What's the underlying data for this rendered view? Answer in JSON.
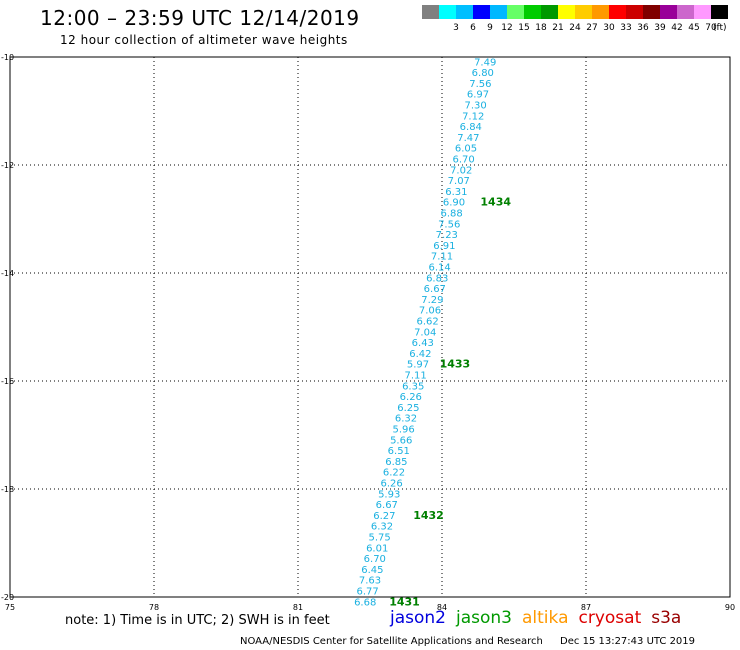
{
  "header": {
    "title": "12:00 – 23:59 UTC 12/14/2019",
    "subtitle": "12 hour collection of altimeter wave heights"
  },
  "legend": {
    "unit": "(ft)",
    "swatches": [
      {
        "color": "#808080",
        "label": ""
      },
      {
        "color": "#00ffff",
        "label": "3"
      },
      {
        "color": "#00bfff",
        "label": "6"
      },
      {
        "color": "#0000ff",
        "label": "9"
      },
      {
        "color": "#00b8ff",
        "label": "12"
      },
      {
        "color": "#66ff66",
        "label": "15"
      },
      {
        "color": "#00cc00",
        "label": "18"
      },
      {
        "color": "#009900",
        "label": "21"
      },
      {
        "color": "#ffff00",
        "label": "24"
      },
      {
        "color": "#ffcc00",
        "label": "27"
      },
      {
        "color": "#ff9900",
        "label": "30"
      },
      {
        "color": "#ff0000",
        "label": "33"
      },
      {
        "color": "#cc0000",
        "label": "36"
      },
      {
        "color": "#800000",
        "label": "39"
      },
      {
        "color": "#990099",
        "label": "42"
      },
      {
        "color": "#cc66cc",
        "label": "45"
      },
      {
        "color": "#ff99ff",
        "label": "70"
      },
      {
        "color": "#000000",
        "label": ""
      }
    ]
  },
  "map": {
    "lon_range": [
      75,
      90
    ],
    "lat_range": [
      -20,
      -10
    ],
    "lon_ticks": [
      "75",
      "78",
      "81",
      "84",
      "87",
      "90"
    ],
    "lat_ticks": [
      "-10",
      "-12",
      "-14",
      "-16",
      "-18",
      "-20"
    ],
    "grid": "dotted",
    "track_color": "#1ab0e0",
    "time_color": "#008000",
    "readings": [
      {
        "lat": -10.08,
        "lon": 84.9,
        "value": "7.49"
      },
      {
        "lat": -10.28,
        "lon": 84.85,
        "value": "6.80"
      },
      {
        "lat": -10.48,
        "lon": 84.8,
        "value": "7.56"
      },
      {
        "lat": -10.68,
        "lon": 84.75,
        "value": "6.97"
      },
      {
        "lat": -10.88,
        "lon": 84.7,
        "value": "7.30"
      },
      {
        "lat": -11.08,
        "lon": 84.65,
        "value": "7.12"
      },
      {
        "lat": -11.28,
        "lon": 84.6,
        "value": "6.84"
      },
      {
        "lat": -11.48,
        "lon": 84.55,
        "value": "7.47"
      },
      {
        "lat": -11.68,
        "lon": 84.5,
        "value": "6.05"
      },
      {
        "lat": -11.88,
        "lon": 84.45,
        "value": "6.70"
      },
      {
        "lat": -12.08,
        "lon": 84.4,
        "value": "7.02"
      },
      {
        "lat": -12.28,
        "lon": 84.35,
        "value": "7.07"
      },
      {
        "lat": -12.48,
        "lon": 84.3,
        "value": "6.31"
      },
      {
        "lat": -12.68,
        "lon": 84.25,
        "value": "6.90"
      },
      {
        "lat": -12.88,
        "lon": 84.2,
        "value": "6.88"
      },
      {
        "lat": -13.08,
        "lon": 84.15,
        "value": "7.56"
      },
      {
        "lat": -13.28,
        "lon": 84.1,
        "value": "7.23"
      },
      {
        "lat": -13.48,
        "lon": 84.05,
        "value": "6.91"
      },
      {
        "lat": -13.68,
        "lon": 84.0,
        "value": "7.11"
      },
      {
        "lat": -13.88,
        "lon": 83.95,
        "value": "6.14"
      },
      {
        "lat": -14.08,
        "lon": 83.9,
        "value": "6.83"
      },
      {
        "lat": -14.28,
        "lon": 83.85,
        "value": "6.67"
      },
      {
        "lat": -14.48,
        "lon": 83.8,
        "value": "7.29"
      },
      {
        "lat": -14.68,
        "lon": 83.75,
        "value": "7.06"
      },
      {
        "lat": -14.88,
        "lon": 83.7,
        "value": "6.62"
      },
      {
        "lat": -15.08,
        "lon": 83.65,
        "value": "7.04"
      },
      {
        "lat": -15.28,
        "lon": 83.6,
        "value": "6.43"
      },
      {
        "lat": -15.48,
        "lon": 83.55,
        "value": "6.42"
      },
      {
        "lat": -15.68,
        "lon": 83.5,
        "value": "5.97"
      },
      {
        "lat": -15.88,
        "lon": 83.45,
        "value": "7.11"
      },
      {
        "lat": -16.08,
        "lon": 83.4,
        "value": "6.35"
      },
      {
        "lat": -16.28,
        "lon": 83.35,
        "value": "6.26"
      },
      {
        "lat": -16.48,
        "lon": 83.3,
        "value": "6.25"
      },
      {
        "lat": -16.68,
        "lon": 83.25,
        "value": "6.32"
      },
      {
        "lat": -16.88,
        "lon": 83.2,
        "value": "5.96"
      },
      {
        "lat": -17.08,
        "lon": 83.15,
        "value": "5.66"
      },
      {
        "lat": -17.28,
        "lon": 83.1,
        "value": "6.51"
      },
      {
        "lat": -17.48,
        "lon": 83.05,
        "value": "6.85"
      },
      {
        "lat": -17.68,
        "lon": 83.0,
        "value": "6.22"
      },
      {
        "lat": -17.88,
        "lon": 82.95,
        "value": "6.26"
      },
      {
        "lat": -18.08,
        "lon": 82.9,
        "value": "5.93"
      },
      {
        "lat": -18.28,
        "lon": 82.85,
        "value": "6.67"
      },
      {
        "lat": -18.48,
        "lon": 82.8,
        "value": "6.27"
      },
      {
        "lat": -18.68,
        "lon": 82.75,
        "value": "6.32"
      },
      {
        "lat": -18.88,
        "lon": 82.7,
        "value": "5.75"
      },
      {
        "lat": -19.08,
        "lon": 82.65,
        "value": "6.01"
      },
      {
        "lat": -19.28,
        "lon": 82.6,
        "value": "6.70"
      },
      {
        "lat": -19.48,
        "lon": 82.55,
        "value": "6.45"
      },
      {
        "lat": -19.68,
        "lon": 82.5,
        "value": "7.63"
      },
      {
        "lat": -19.88,
        "lon": 82.45,
        "value": "6.77"
      },
      {
        "lat": -20.08,
        "lon": 82.4,
        "value": "6.68"
      }
    ],
    "time_labels": [
      {
        "lat": -12.68,
        "lon": 84.8,
        "text": "1434"
      },
      {
        "lat": -15.68,
        "lon": 83.95,
        "text": "1433"
      },
      {
        "lat": -18.48,
        "lon": 83.4,
        "text": "1432"
      },
      {
        "lat": -20.08,
        "lon": 82.9,
        "text": "1431"
      }
    ]
  },
  "footer": {
    "note": "note:  1) Time is in UTC;  2) SWH is in feet",
    "satellites": [
      {
        "name": "jason2",
        "color": "#0000dd"
      },
      {
        "name": "jason3",
        "color": "#009900"
      },
      {
        "name": "altika",
        "color": "#ff9900"
      },
      {
        "name": "cryosat",
        "color": "#dd0000"
      },
      {
        "name": "s3a",
        "color": "#990000"
      }
    ],
    "credit": "NOAA/NESDIS Center for Satellite Applications and Research",
    "timestamp": "Dec 15 13:27:43 UTC 2019"
  }
}
